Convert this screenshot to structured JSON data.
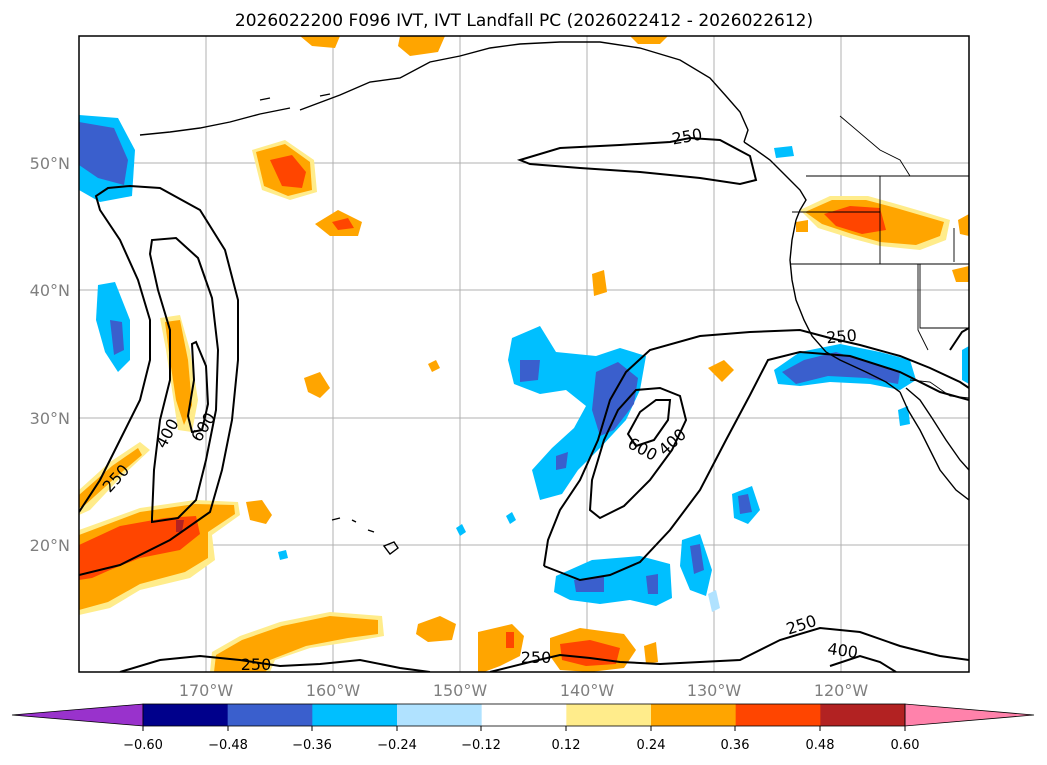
{
  "title": "2026022200 F096 IVT, IVT Landfall PC (2026022412 - 2026022612)",
  "axes": {
    "lon_ticks": [
      "170°W",
      "160°W",
      "150°W",
      "140°W",
      "130°W",
      "120°W"
    ],
    "lat_ticks": [
      "50°N",
      "40°N",
      "30°N",
      "20°N"
    ]
  },
  "colorbar": {
    "ticks": [
      "−0.60",
      "−0.48",
      "−0.36",
      "−0.24",
      "−0.12",
      "0.12",
      "0.24",
      "0.36",
      "0.48",
      "0.60"
    ],
    "colors": [
      "#9932cc",
      "#00008b",
      "#3a5fcd",
      "#00bfff",
      "#b0e2ff",
      "#ffffff",
      "#ffec8b",
      "#ffa500",
      "#ff4500",
      "#b22222",
      "#ff82ab"
    ]
  },
  "contour_labels": [
    "250",
    "400",
    "600",
    "250",
    "600",
    "400",
    "250",
    "250",
    "250",
    "250",
    "400"
  ],
  "chart_data": {
    "type": "map",
    "title": "2026022200 F096 IVT, IVT Landfall PC (2026022412 - 2026022612)",
    "field_filled": "IVT Landfall PC",
    "field_contoured": "IVT",
    "contour_levels": [
      250,
      400,
      600
    ],
    "shading_levels": [
      -0.6,
      -0.48,
      -0.36,
      -0.24,
      -0.12,
      0.12,
      0.24,
      0.36,
      0.48,
      0.6
    ],
    "lon_range": [
      "180°W",
      "110°W"
    ],
    "lat_range": [
      "10°N",
      "60°N"
    ],
    "colorbar_extend": "both",
    "grid": true
  }
}
